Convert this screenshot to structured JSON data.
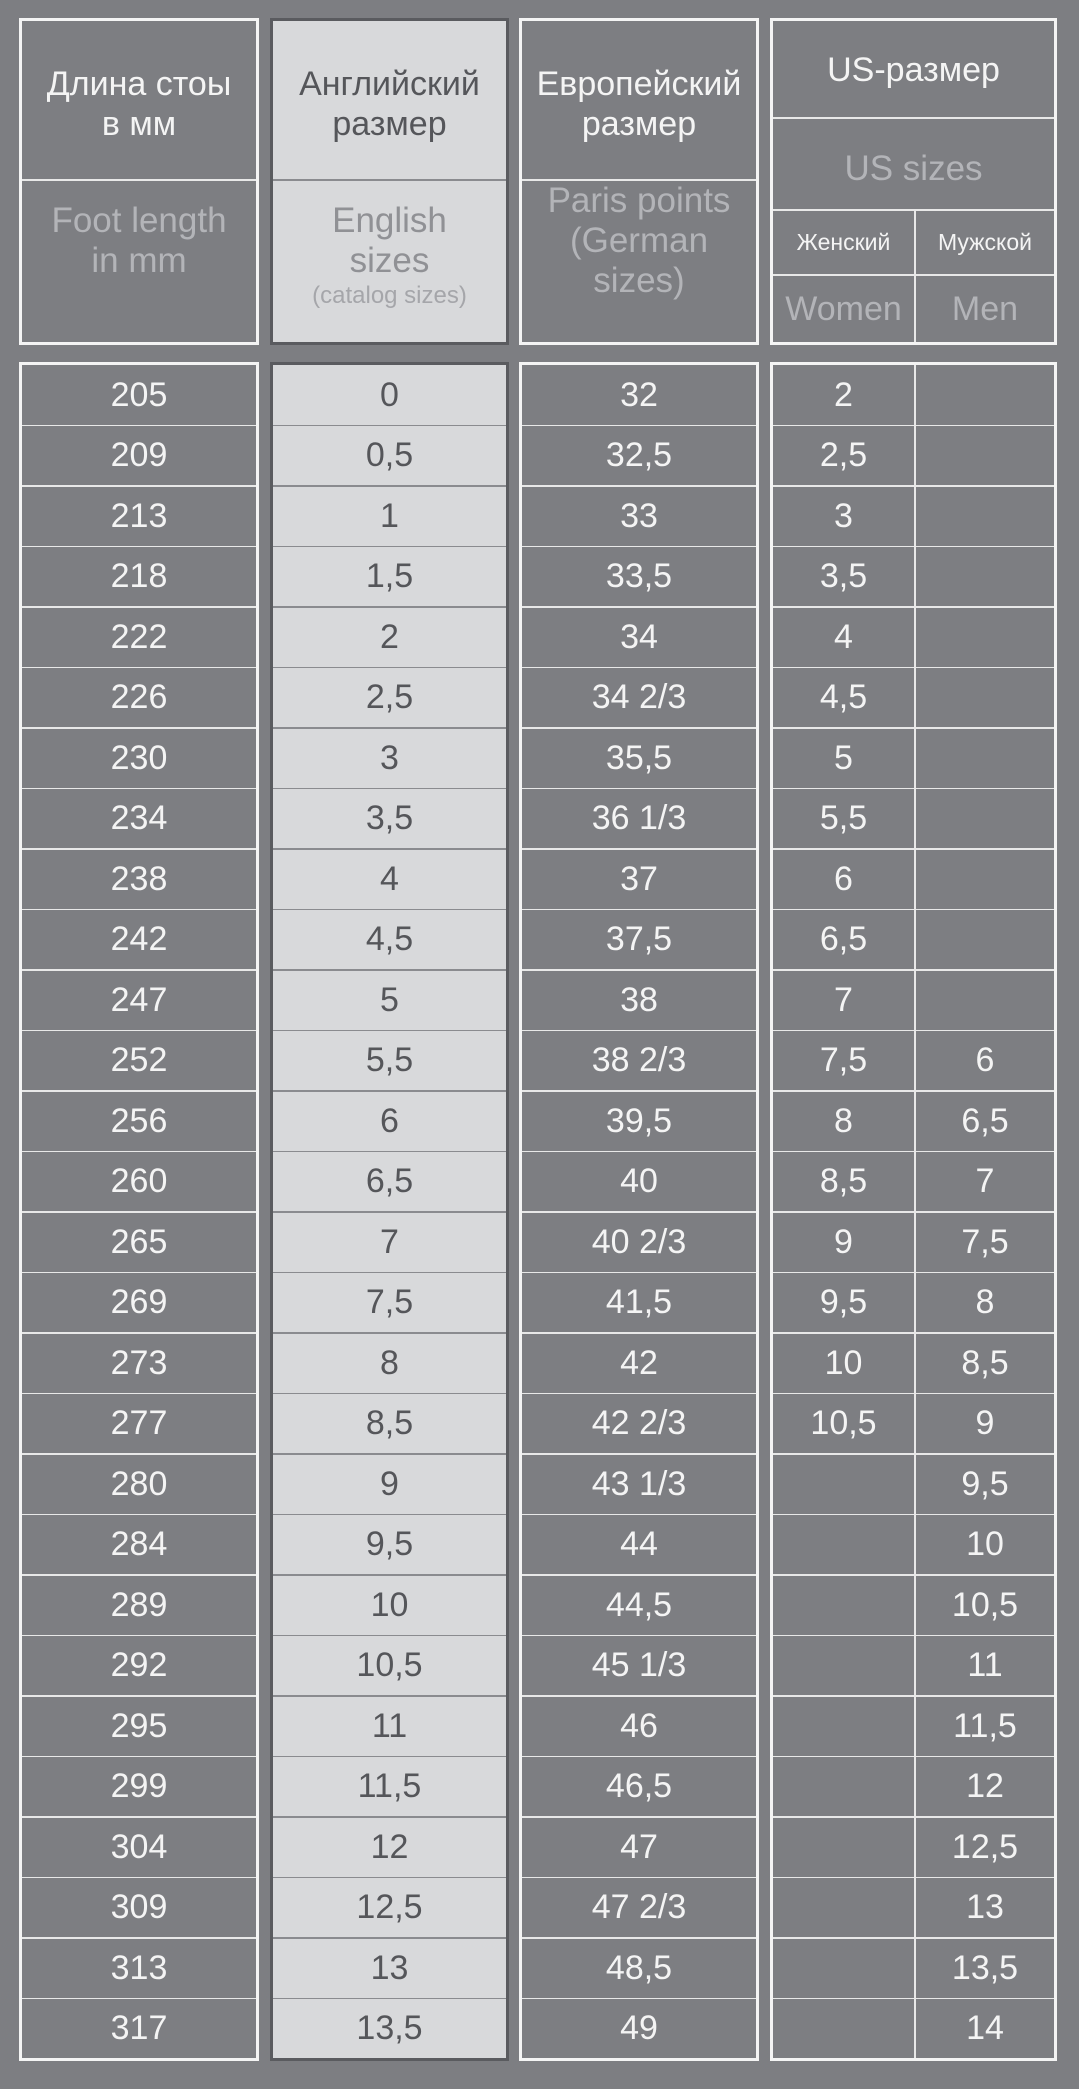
{
  "header": {
    "length": {
      "ru": "Длина стоы в мм",
      "en": "Foot length in mm"
    },
    "english": {
      "ru": "Английский размер",
      "en": "English sizes",
      "note": "(catalog sizes)"
    },
    "european": {
      "ru": "Европейский размер",
      "en": "Paris points (German sizes)"
    },
    "us": {
      "ru": "US-размер",
      "en": "US sizes",
      "women_ru": "Женский",
      "men_ru": "Мужской",
      "women_en": "Women",
      "men_en": "Men"
    }
  },
  "rows": [
    [
      "205",
      "0",
      "32",
      "2",
      ""
    ],
    [
      "209",
      "0,5",
      "32,5",
      "2,5",
      ""
    ],
    [
      "213",
      "1",
      "33",
      "3",
      ""
    ],
    [
      "218",
      "1,5",
      "33,5",
      "3,5",
      ""
    ],
    [
      "222",
      "2",
      "34",
      "4",
      ""
    ],
    [
      "226",
      "2,5",
      "34 2/3",
      "4,5",
      ""
    ],
    [
      "230",
      "3",
      "35,5",
      "5",
      ""
    ],
    [
      "234",
      "3,5",
      "36 1/3",
      "5,5",
      ""
    ],
    [
      "238",
      "4",
      "37",
      "6",
      ""
    ],
    [
      "242",
      "4,5",
      "37,5",
      "6,5",
      ""
    ],
    [
      "247",
      "5",
      "38",
      "7",
      ""
    ],
    [
      "252",
      "5,5",
      "38 2/3",
      "7,5",
      "6"
    ],
    [
      "256",
      "6",
      "39,5",
      "8",
      "6,5"
    ],
    [
      "260",
      "6,5",
      "40",
      "8,5",
      "7"
    ],
    [
      "265",
      "7",
      "40 2/3",
      "9",
      "7,5"
    ],
    [
      "269",
      "7,5",
      "41,5",
      "9,5",
      "8"
    ],
    [
      "273",
      "8",
      "42",
      "10",
      "8,5"
    ],
    [
      "277",
      "8,5",
      "42 2/3",
      "10,5",
      "9"
    ],
    [
      "280",
      "9",
      "43 1/3",
      "",
      "9,5"
    ],
    [
      "284",
      "9,5",
      "44",
      "",
      "10"
    ],
    [
      "289",
      "10",
      "44,5",
      "",
      "10,5"
    ],
    [
      "292",
      "10,5",
      "45 1/3",
      "",
      "11"
    ],
    [
      "295",
      "11",
      "46",
      "",
      "11,5"
    ],
    [
      "299",
      "11,5",
      "46,5",
      "",
      "12"
    ],
    [
      "304",
      "12",
      "47",
      "",
      "12,5"
    ],
    [
      "309",
      "12,5",
      "47 2/3",
      "",
      "13"
    ],
    [
      "313",
      "13",
      "48,5",
      "",
      "13,5"
    ],
    [
      "317",
      "13,5",
      "49",
      "",
      "14"
    ]
  ]
}
